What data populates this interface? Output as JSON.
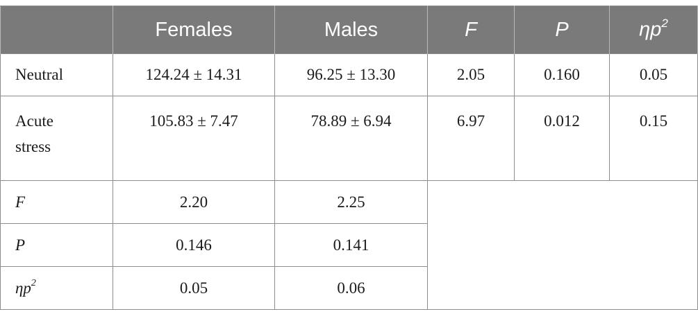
{
  "table": {
    "header": {
      "corner": "",
      "females": "Females",
      "males": "Males",
      "f": "F",
      "p": "P",
      "eta_base": "ηp",
      "eta_sup": "2"
    },
    "rows": {
      "neutral": {
        "label": "Neutral",
        "females": "124.24 ± 14.31",
        "males": "96.25 ± 13.30",
        "f": "2.05",
        "p": "0.160",
        "eta": "0.05"
      },
      "acute": {
        "label_line1": "Acute",
        "label_line2": "stress",
        "females": "105.83 ± 7.47",
        "males": "78.89 ± 6.94",
        "f": "6.97",
        "p": "0.012",
        "eta": "0.15"
      },
      "f": {
        "label": "F",
        "females": "2.20",
        "males": "2.25"
      },
      "p": {
        "label": "P",
        "females": "0.146",
        "males": "0.141"
      },
      "eta": {
        "label_base": "ηp",
        "label_sup": "2",
        "females": "0.05",
        "males": "0.06"
      }
    }
  }
}
